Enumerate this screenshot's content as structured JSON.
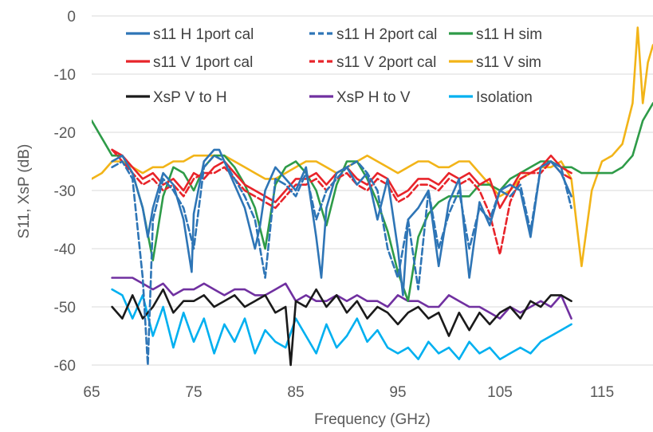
{
  "chart_data": {
    "type": "line",
    "title": "",
    "xlabel": "Frequency (GHz)",
    "ylabel": "S11, XsP (dB)",
    "xlim": [
      65,
      120
    ],
    "ylim": [
      -60,
      0
    ],
    "x_ticks": [
      65,
      75,
      85,
      95,
      105,
      115
    ],
    "y_ticks": [
      0,
      -10,
      -20,
      -30,
      -40,
      -50,
      -60
    ],
    "grid": "horizontal",
    "legend_position": "top",
    "series": [
      {
        "name": "s11 H 1port cal",
        "color": "#2E75B6",
        "dash": "solid",
        "x": [
          67,
          68,
          69,
          70,
          70.5,
          71,
          72,
          73,
          74,
          74.8,
          75,
          76,
          77,
          77.5,
          78,
          79,
          80,
          81,
          81.5,
          82,
          83,
          84,
          85,
          86,
          87,
          87.5,
          88,
          89,
          90,
          91,
          92,
          93,
          94,
          95,
          95.5,
          96,
          97,
          98,
          99,
          100,
          101,
          102,
          103,
          104,
          105,
          106,
          107,
          108,
          109,
          110,
          111,
          112
        ],
        "y": [
          -25,
          -24,
          -27,
          -33,
          -38,
          -33,
          -27,
          -29,
          -35,
          -44,
          -34,
          -25,
          -23,
          -23,
          -25,
          -29,
          -33,
          -40,
          -36,
          -30,
          -26,
          -28,
          -30,
          -26,
          -38,
          -45,
          -33,
          -27,
          -26,
          -29,
          -27,
          -35,
          -28,
          -40,
          -48,
          -35,
          -33,
          -30,
          -43,
          -32,
          -28,
          -45,
          -32,
          -36,
          -30,
          -29,
          -30,
          -38,
          -26,
          -25,
          -27,
          -31
        ]
      },
      {
        "name": "s11 H 2port cal",
        "color": "#2E75B6",
        "dash": "dashed",
        "x": [
          67,
          68,
          69,
          70,
          70.5,
          71,
          72,
          73,
          74,
          75,
          76,
          77,
          78,
          79,
          80,
          81,
          82,
          83,
          84,
          85,
          86,
          87,
          88,
          89,
          90,
          91,
          92,
          93,
          94,
          95,
          96,
          97,
          98,
          99,
          100,
          101,
          102,
          103,
          104,
          105,
          106,
          107,
          108,
          109,
          110,
          111,
          112
        ],
        "y": [
          -26,
          -25,
          -28,
          -45,
          -60,
          -35,
          -28,
          -30,
          -33,
          -40,
          -26,
          -24,
          -25,
          -28,
          -31,
          -35,
          -45,
          -28,
          -29,
          -31,
          -27,
          -35,
          -30,
          -28,
          -26,
          -25,
          -27,
          -30,
          -40,
          -45,
          -35,
          -47,
          -30,
          -40,
          -34,
          -30,
          -40,
          -33,
          -35,
          -30,
          -31,
          -29,
          -37,
          -26,
          -25,
          -26,
          -33
        ]
      },
      {
        "name": "s11 H sim",
        "color": "#2E9B48",
        "dash": "solid",
        "x": [
          65,
          66,
          67,
          68,
          69,
          70,
          71,
          72,
          73,
          74,
          75,
          76,
          77,
          78,
          79,
          80,
          81,
          82,
          83,
          84,
          85,
          86,
          87,
          88,
          89,
          90,
          91,
          92,
          93,
          94,
          95,
          96,
          97,
          98,
          99,
          100,
          101,
          102,
          103,
          104,
          105,
          106,
          107,
          108,
          109,
          110,
          111,
          112,
          113,
          114,
          115,
          116,
          117,
          118,
          119,
          120
        ],
        "y": [
          -18,
          -21,
          -24,
          -24,
          -27,
          -33,
          -42,
          -31,
          -26,
          -27,
          -30,
          -26,
          -24,
          -24,
          -26,
          -29,
          -33,
          -40,
          -29,
          -26,
          -25,
          -27,
          -30,
          -36,
          -29,
          -25,
          -25,
          -28,
          -32,
          -37,
          -44,
          -49,
          -38,
          -34,
          -32,
          -31,
          -31,
          -31,
          -29,
          -29,
          -30,
          -28,
          -27,
          -26,
          -25,
          -25,
          -26,
          -26,
          -27,
          -27,
          -27,
          -27,
          -26,
          -24,
          -18,
          -15
        ]
      },
      {
        "name": "s11 V 1port cal",
        "color": "#E8242A",
        "dash": "solid",
        "x": [
          67,
          68,
          69,
          70,
          71,
          72,
          73,
          74,
          75,
          76,
          77,
          78,
          79,
          80,
          81,
          82,
          83,
          84,
          85,
          86,
          87,
          88,
          89,
          90,
          91,
          92,
          93,
          94,
          95,
          96,
          97,
          98,
          99,
          100,
          101,
          102,
          103,
          104,
          105,
          106,
          107,
          108,
          109,
          110,
          111,
          112
        ],
        "y": [
          -23,
          -24,
          -26,
          -28,
          -27,
          -29,
          -28,
          -30,
          -27,
          -28,
          -26,
          -25,
          -27,
          -29,
          -30,
          -31,
          -32,
          -30,
          -28,
          -28,
          -27,
          -29,
          -27,
          -26,
          -28,
          -29,
          -27,
          -28,
          -31,
          -30,
          -28,
          -28,
          -29,
          -27,
          -28,
          -27,
          -29,
          -28,
          -33,
          -30,
          -27,
          -27,
          -26,
          -24,
          -26,
          -27
        ]
      },
      {
        "name": "s11 V 2port cal",
        "color": "#E8242A",
        "dash": "dashed",
        "x": [
          67,
          68,
          69,
          70,
          71,
          72,
          73,
          74,
          75,
          76,
          77,
          78,
          79,
          80,
          81,
          82,
          83,
          84,
          85,
          86,
          87,
          88,
          89,
          90,
          91,
          92,
          93,
          94,
          95,
          96,
          97,
          98,
          99,
          100,
          101,
          102,
          103,
          104,
          105,
          106,
          107,
          108,
          109,
          110,
          111,
          112
        ],
        "y": [
          -23,
          -25,
          -27,
          -29,
          -28,
          -30,
          -29,
          -31,
          -28,
          -27,
          -27,
          -26,
          -28,
          -30,
          -31,
          -32,
          -33,
          -31,
          -29,
          -29,
          -28,
          -30,
          -28,
          -27,
          -29,
          -30,
          -28,
          -29,
          -32,
          -31,
          -29,
          -29,
          -30,
          -28,
          -29,
          -28,
          -30,
          -34,
          -41,
          -32,
          -28,
          -27,
          -27,
          -25,
          -27,
          -28
        ]
      },
      {
        "name": "s11 V sim",
        "color": "#F2B418",
        "dash": "solid",
        "x": [
          65,
          66,
          67,
          68,
          69,
          70,
          71,
          72,
          73,
          74,
          75,
          76,
          77,
          78,
          79,
          80,
          81,
          82,
          83,
          84,
          85,
          86,
          87,
          88,
          89,
          90,
          91,
          92,
          93,
          94,
          95,
          96,
          97,
          98,
          99,
          100,
          101,
          102,
          103,
          104,
          105,
          106,
          107,
          108,
          109,
          110,
          111,
          112,
          113,
          114,
          115,
          116,
          117,
          118,
          118.5,
          119,
          119.5,
          120
        ],
        "y": [
          -28,
          -27,
          -25,
          -25,
          -26,
          -27,
          -26,
          -26,
          -25,
          -25,
          -24,
          -24,
          -24,
          -24,
          -25,
          -26,
          -27,
          -28,
          -28,
          -27,
          -26,
          -25,
          -25,
          -26,
          -27,
          -26,
          -25,
          -24,
          -25,
          -26,
          -27,
          -26,
          -25,
          -25,
          -26,
          -26,
          -25,
          -25,
          -27,
          -29,
          -31,
          -30,
          -28,
          -27,
          -26,
          -26,
          -25,
          -28,
          -43,
          -30,
          -25,
          -24,
          -22,
          -15,
          -2,
          -15,
          -8,
          -5
        ]
      },
      {
        "name": "XsP V to H",
        "color": "#1A1A1A",
        "dash": "solid",
        "x": [
          67,
          68,
          69,
          70,
          71,
          72,
          73,
          74,
          75,
          76,
          77,
          78,
          79,
          80,
          81,
          82,
          83,
          84,
          84.5,
          85,
          86,
          87,
          88,
          89,
          90,
          91,
          92,
          93,
          94,
          95,
          96,
          97,
          98,
          99,
          100,
          101,
          102,
          103,
          104,
          105,
          106,
          107,
          108,
          109,
          110,
          111,
          112
        ],
        "y": [
          -50,
          -52,
          -48,
          -52,
          -50,
          -47,
          -51,
          -49,
          -49,
          -48,
          -50,
          -49,
          -48,
          -50,
          -49,
          -48,
          -51,
          -50,
          -60,
          -49,
          -50,
          -47,
          -50,
          -48,
          -51,
          -49,
          -52,
          -50,
          -51,
          -53,
          -51,
          -50,
          -52,
          -51,
          -55,
          -51,
          -54,
          -51,
          -53,
          -51,
          -50,
          -52,
          -49,
          -50,
          -48,
          -48,
          -49
        ]
      },
      {
        "name": "XsP H to V",
        "color": "#7030A0",
        "dash": "solid",
        "x": [
          67,
          68,
          69,
          70,
          71,
          72,
          73,
          74,
          75,
          76,
          77,
          78,
          79,
          80,
          81,
          82,
          83,
          84,
          85,
          86,
          87,
          88,
          89,
          90,
          91,
          92,
          93,
          94,
          95,
          96,
          97,
          98,
          99,
          100,
          101,
          102,
          103,
          104,
          105,
          106,
          107,
          108,
          109,
          110,
          111,
          112
        ],
        "y": [
          -45,
          -45,
          -45,
          -46,
          -47,
          -46,
          -48,
          -47,
          -47,
          -46,
          -47,
          -48,
          -47,
          -47,
          -48,
          -48,
          -47,
          -46,
          -49,
          -48,
          -49,
          -49,
          -48,
          -49,
          -48,
          -49,
          -49,
          -50,
          -48,
          -49,
          -49,
          -50,
          -50,
          -48,
          -49,
          -50,
          -50,
          -51,
          -52,
          -50,
          -51,
          -50,
          -49,
          -50,
          -48,
          -52
        ]
      },
      {
        "name": "Isolation",
        "color": "#00B0F0",
        "dash": "solid",
        "x": [
          67,
          68,
          69,
          70,
          71,
          72,
          73,
          74,
          75,
          76,
          77,
          78,
          79,
          80,
          81,
          82,
          83,
          84,
          85,
          86,
          87,
          88,
          89,
          90,
          91,
          92,
          93,
          94,
          95,
          96,
          97,
          98,
          99,
          100,
          101,
          102,
          103,
          104,
          105,
          106,
          107,
          108,
          109,
          110,
          111,
          112
        ],
        "y": [
          -47,
          -48,
          -52,
          -48,
          -55,
          -50,
          -57,
          -51,
          -56,
          -52,
          -58,
          -53,
          -56,
          -52,
          -58,
          -54,
          -56,
          -57,
          -52,
          -55,
          -58,
          -53,
          -57,
          -55,
          -52,
          -56,
          -54,
          -57,
          -58,
          -57,
          -59,
          -56,
          -58,
          -57,
          -59,
          -56,
          -58,
          -57,
          -59,
          -58,
          -57,
          -58,
          -56,
          -55,
          -54,
          -53
        ]
      }
    ]
  }
}
